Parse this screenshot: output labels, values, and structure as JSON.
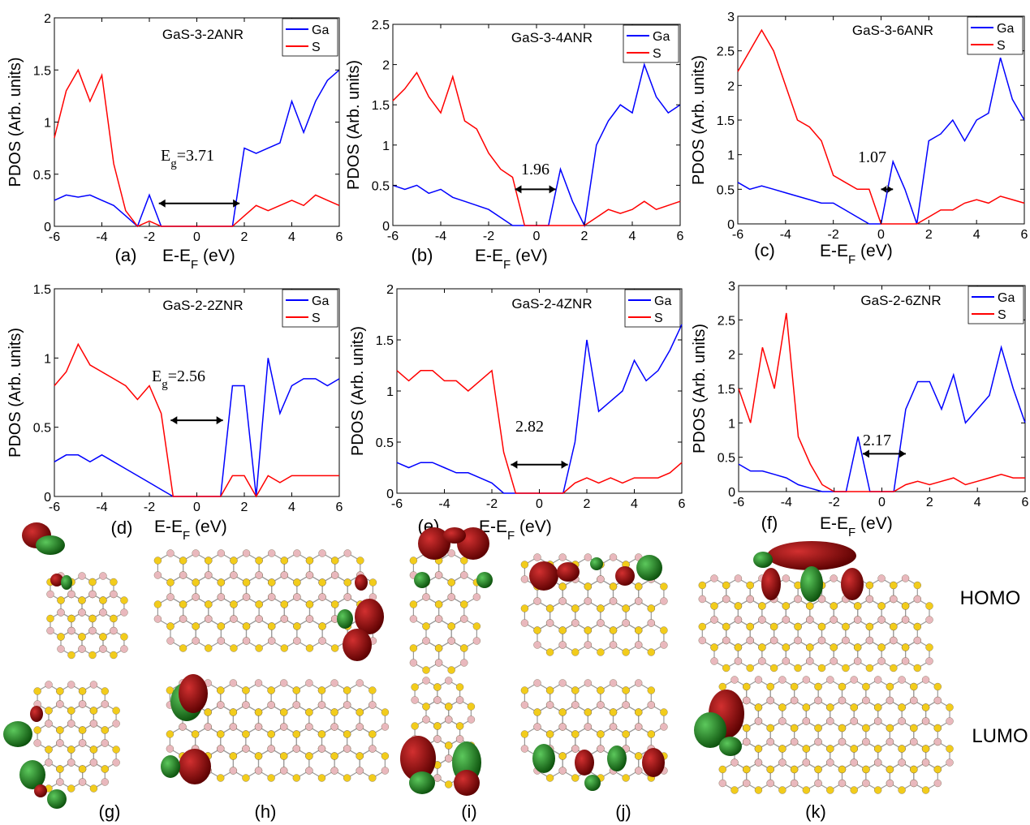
{
  "chart_data": [
    {
      "type": "line",
      "title": "GaS-3-2ANR",
      "panel": "(a)",
      "ylabel": "PDOS (Arb. units)",
      "xlabel": [
        "E-E",
        "F",
        " (eV)"
      ],
      "annotation": [
        "E",
        "g",
        "=3.71"
      ],
      "gap_arrow": [
        -1.6,
        1.8
      ],
      "x": [
        -6,
        -5.5,
        -5,
        -4.5,
        -4,
        -3.5,
        -3,
        -2.5,
        -2,
        -1.5,
        -1,
        -0.5,
        0,
        0.5,
        1,
        1.5,
        2,
        2.5,
        3,
        3.5,
        4,
        4.5,
        5,
        5.5,
        6
      ],
      "xlim": [
        -6,
        6
      ],
      "xticks": [
        -6,
        -4,
        -2,
        0,
        2,
        4,
        6
      ],
      "ylim": [
        0,
        2
      ],
      "yticks": [
        0,
        0.5,
        1,
        1.5,
        2
      ],
      "series": [
        {
          "name": "Ga",
          "color": "#0000ff",
          "values": [
            0.25,
            0.3,
            0.28,
            0.3,
            0.25,
            0.2,
            0.1,
            0,
            0.3,
            0,
            0,
            0,
            0,
            0,
            0,
            0,
            0.75,
            0.7,
            0.75,
            0.8,
            1.2,
            0.9,
            1.2,
            1.4,
            1.5
          ]
        },
        {
          "name": "S",
          "color": "#ff0000",
          "values": [
            0.85,
            1.3,
            1.5,
            1.2,
            1.45,
            0.6,
            0.15,
            0,
            0.05,
            0,
            0,
            0,
            0,
            0,
            0,
            0,
            0.1,
            0.2,
            0.15,
            0.2,
            0.25,
            0.2,
            0.3,
            0.25,
            0.2
          ]
        }
      ]
    },
    {
      "type": "line",
      "title": "GaS-3-4ANR",
      "panel": "(b)",
      "ylabel": "PDOS (Arb. units)",
      "xlabel": [
        "E-E",
        "F",
        " (eV)"
      ],
      "annotation": [
        "1.96"
      ],
      "gap_arrow": [
        -0.9,
        0.8
      ],
      "x": [
        -6,
        -5.5,
        -5,
        -4.5,
        -4,
        -3.5,
        -3,
        -2.5,
        -2,
        -1.5,
        -1,
        -0.5,
        0,
        0.5,
        1,
        1.5,
        2,
        2.5,
        3,
        3.5,
        4,
        4.5,
        5,
        5.5,
        6
      ],
      "xlim": [
        -6,
        6
      ],
      "xticks": [
        -6,
        -4,
        -2,
        0,
        2,
        4,
        6
      ],
      "ylim": [
        0,
        2.5
      ],
      "yticks": [
        0,
        0.5,
        1,
        1.5,
        2,
        2.5
      ],
      "series": [
        {
          "name": "Ga",
          "color": "#0000ff",
          "values": [
            0.5,
            0.45,
            0.5,
            0.4,
            0.45,
            0.35,
            0.3,
            0.25,
            0.2,
            0.1,
            0,
            0,
            0,
            0,
            0.7,
            0.3,
            0,
            1.0,
            1.3,
            1.5,
            1.4,
            2.0,
            1.6,
            1.4,
            1.5
          ]
        },
        {
          "name": "S",
          "color": "#ff0000",
          "values": [
            1.55,
            1.7,
            1.9,
            1.6,
            1.4,
            1.85,
            1.3,
            1.2,
            0.9,
            0.7,
            0.6,
            0,
            0,
            0,
            0,
            0,
            0,
            0.1,
            0.2,
            0.15,
            0.2,
            0.3,
            0.2,
            0.25,
            0.3
          ]
        }
      ]
    },
    {
      "type": "line",
      "title": "GaS-3-6ANR",
      "panel": "(c)",
      "ylabel": "PDOS (Arb. units)",
      "xlabel": [
        "E-E",
        "F",
        " (eV)"
      ],
      "annotation": [
        "1.07"
      ],
      "gap_arrow": [
        0,
        0.5
      ],
      "x": [
        -6,
        -5.5,
        -5,
        -4.5,
        -4,
        -3.5,
        -3,
        -2.5,
        -2,
        -1.5,
        -1,
        -0.5,
        0,
        0.5,
        1,
        1.5,
        2,
        2.5,
        3,
        3.5,
        4,
        4.5,
        5,
        5.5,
        6
      ],
      "xlim": [
        -6,
        6
      ],
      "xticks": [
        -6,
        -4,
        -2,
        0,
        2,
        4,
        6
      ],
      "ylim": [
        0,
        3
      ],
      "yticks": [
        0,
        0.5,
        1,
        1.5,
        2,
        2.5,
        3
      ],
      "series": [
        {
          "name": "Ga",
          "color": "#0000ff",
          "values": [
            0.6,
            0.5,
            0.55,
            0.5,
            0.45,
            0.4,
            0.35,
            0.3,
            0.3,
            0.2,
            0.1,
            0,
            0,
            0.9,
            0.5,
            0,
            1.2,
            1.3,
            1.5,
            1.2,
            1.5,
            1.6,
            2.4,
            1.8,
            1.5
          ]
        },
        {
          "name": "S",
          "color": "#ff0000",
          "values": [
            2.2,
            2.5,
            2.8,
            2.5,
            2.0,
            1.5,
            1.4,
            1.2,
            0.7,
            0.6,
            0.5,
            0.5,
            0,
            0,
            0,
            0,
            0.1,
            0.2,
            0.2,
            0.3,
            0.35,
            0.3,
            0.4,
            0.35,
            0.3
          ]
        }
      ]
    },
    {
      "type": "line",
      "title": "GaS-2-2ZNR",
      "panel": "(d)",
      "ylabel": "PDOS (Arb. units)",
      "xlabel": [
        "E-E",
        "F",
        " (eV)"
      ],
      "annotation": [
        "E",
        "g",
        "=2.56"
      ],
      "gap_arrow": [
        -1.1,
        1.1
      ],
      "x": [
        -6,
        -5.5,
        -5,
        -4.5,
        -4,
        -3.5,
        -3,
        -2.5,
        -2,
        -1.5,
        -1,
        -0.5,
        0,
        0.5,
        1,
        1.5,
        2,
        2.5,
        3,
        3.5,
        4,
        4.5,
        5,
        5.5,
        6
      ],
      "xlim": [
        -6,
        6
      ],
      "xticks": [
        -6,
        -4,
        -2,
        0,
        2,
        4,
        6
      ],
      "ylim": [
        0,
        1.5
      ],
      "yticks": [
        0,
        0.5,
        1,
        1.5
      ],
      "series": [
        {
          "name": "Ga",
          "color": "#0000ff",
          "values": [
            0.25,
            0.3,
            0.3,
            0.25,
            0.3,
            0.25,
            0.2,
            0.15,
            0.1,
            0.05,
            0,
            0,
            0,
            0,
            0,
            0.8,
            0.8,
            0,
            1.0,
            0.6,
            0.8,
            0.85,
            0.85,
            0.8,
            0.85
          ]
        },
        {
          "name": "S",
          "color": "#ff0000",
          "values": [
            0.8,
            0.9,
            1.1,
            0.95,
            0.9,
            0.85,
            0.8,
            0.7,
            0.8,
            0.6,
            0,
            0,
            0,
            0,
            0,
            0.15,
            0.15,
            0,
            0.15,
            0.1,
            0.15,
            0.15,
            0.15,
            0.15,
            0.15
          ]
        }
      ]
    },
    {
      "type": "line",
      "title": "GaS-2-4ZNR",
      "panel": "(e)",
      "ylabel": "PDOS (Arb. units)",
      "xlabel": [
        "E-E",
        "F",
        " (eV)"
      ],
      "annotation": [
        "2.82"
      ],
      "gap_arrow": [
        -1.2,
        1.2
      ],
      "x": [
        -6,
        -5.5,
        -5,
        -4.5,
        -4,
        -3.5,
        -3,
        -2.5,
        -2,
        -1.5,
        -1,
        -0.5,
        0,
        0.5,
        1,
        1.5,
        2,
        2.5,
        3,
        3.5,
        4,
        4.5,
        5,
        5.5,
        6
      ],
      "xlim": [
        -6,
        6
      ],
      "xticks": [
        -6,
        -4,
        -2,
        0,
        2,
        4,
        6
      ],
      "ylim": [
        0,
        2
      ],
      "yticks": [
        0,
        0.5,
        1,
        1.5,
        2
      ],
      "series": [
        {
          "name": "Ga",
          "color": "#0000ff",
          "values": [
            0.3,
            0.25,
            0.3,
            0.3,
            0.25,
            0.2,
            0.2,
            0.15,
            0.1,
            0,
            0,
            0,
            0,
            0,
            0,
            0.5,
            1.5,
            0.8,
            0.9,
            1.0,
            1.3,
            1.1,
            1.2,
            1.4,
            1.65
          ]
        },
        {
          "name": "S",
          "color": "#ff0000",
          "values": [
            1.2,
            1.1,
            1.2,
            1.2,
            1.1,
            1.1,
            1.0,
            1.1,
            1.2,
            0.4,
            0,
            0,
            0,
            0,
            0,
            0.1,
            0.15,
            0.1,
            0.15,
            0.1,
            0.15,
            0.15,
            0.15,
            0.2,
            0.3
          ]
        }
      ]
    },
    {
      "type": "line",
      "title": "GaS-2-6ZNR",
      "panel": "(f)",
      "ylabel": "PDOS (Arb. units)",
      "xlabel": [
        "E-E",
        "F",
        " (eV)"
      ],
      "annotation": [
        "2.17"
      ],
      "gap_arrow": [
        -0.8,
        1.0
      ],
      "x": [
        -6,
        -5.5,
        -5,
        -4.5,
        -4,
        -3.5,
        -3,
        -2.5,
        -2,
        -1.5,
        -1,
        -0.5,
        0,
        0.5,
        1,
        1.5,
        2,
        2.5,
        3,
        3.5,
        4,
        4.5,
        5,
        5.5,
        6
      ],
      "xlim": [
        -6,
        6
      ],
      "xticks": [
        -6,
        -4,
        -2,
        0,
        2,
        4,
        6
      ],
      "ylim": [
        0,
        3
      ],
      "yticks": [
        0,
        0.5,
        1,
        1.5,
        2,
        2.5,
        3
      ],
      "series": [
        {
          "name": "Ga",
          "color": "#0000ff",
          "values": [
            0.4,
            0.3,
            0.3,
            0.25,
            0.2,
            0.1,
            0.05,
            0,
            0,
            0,
            0.8,
            0,
            0,
            0,
            1.2,
            1.6,
            1.6,
            1.2,
            1.7,
            1.0,
            1.2,
            1.4,
            2.1,
            1.5,
            1.0
          ]
        },
        {
          "name": "S",
          "color": "#ff0000",
          "values": [
            1.5,
            1.0,
            2.1,
            1.5,
            2.6,
            0.8,
            0.4,
            0.1,
            0,
            0,
            0,
            0,
            0,
            0,
            0.1,
            0.15,
            0.1,
            0.15,
            0.2,
            0.1,
            0.15,
            0.2,
            0.25,
            0.2,
            0.2
          ]
        }
      ]
    }
  ],
  "structures": {
    "labels": [
      "(g)",
      "(h)",
      "(i)",
      "(j)",
      "(k)"
    ],
    "orbitals": [
      "HOMO",
      "LUMO"
    ]
  }
}
